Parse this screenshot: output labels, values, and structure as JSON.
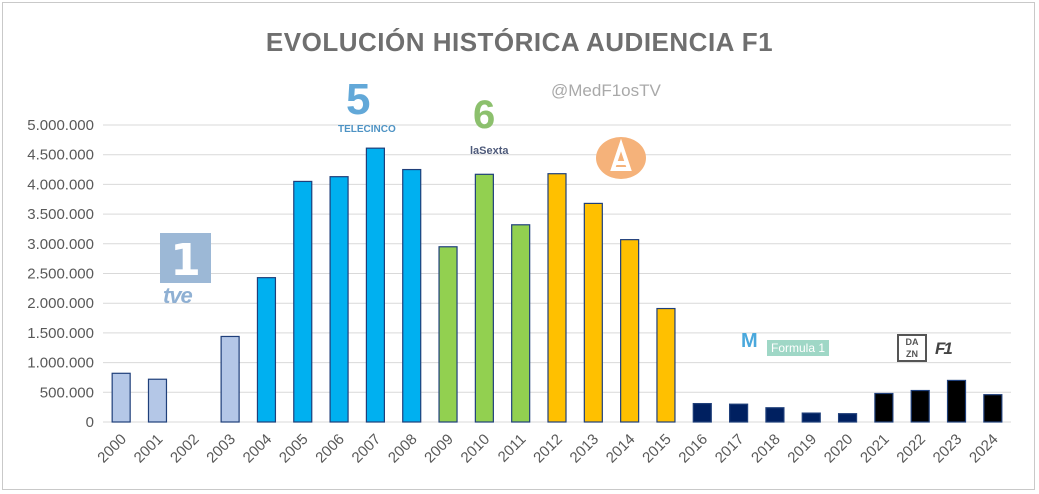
{
  "watermark": "@MedF1osTV",
  "logos": {
    "tve_number": "1",
    "tve_text": "tve",
    "telecinco_number": "5",
    "telecinco_text": "TELECINCO",
    "lasexta_number": "6",
    "lasexta_text": "laSexta",
    "movistar_mark": "M",
    "formula1_text": "Formula 1",
    "dazn_text": "DA ZN",
    "f1_text": "F1"
  },
  "chart_data": {
    "type": "bar",
    "title": "EVOLUCIÓN HISTÓRICA AUDIENCIA F1",
    "xlabel": "",
    "ylabel": "",
    "ylim": [
      0,
      5000000
    ],
    "ytick_values": [
      0,
      500000,
      1000000,
      1500000,
      2000000,
      2500000,
      3000000,
      3500000,
      4000000,
      4500000,
      5000000
    ],
    "ytick_labels": [
      "0",
      "500.000",
      "1.000.000",
      "1.500.000",
      "2.000.000",
      "2.500.000",
      "3.000.000",
      "3.500.000",
      "4.000.000",
      "4.500.000",
      "5.000.000"
    ],
    "grid": true,
    "categories": [
      "2000",
      "2001",
      "2002",
      "2003",
      "2004",
      "2005",
      "2006",
      "2007",
      "2008",
      "2009",
      "2010",
      "2011",
      "2012",
      "2013",
      "2014",
      "2015",
      "2016",
      "2017",
      "2018",
      "2019",
      "2020",
      "2021",
      "2022",
      "2023",
      "2024"
    ],
    "values": [
      820000,
      720000,
      0,
      1440000,
      2430000,
      4050000,
      4130000,
      4610000,
      4250000,
      2950000,
      4170000,
      3320000,
      4180000,
      3680000,
      3070000,
      1910000,
      310000,
      300000,
      240000,
      150000,
      140000,
      480000,
      530000,
      700000,
      460000
    ],
    "colors": [
      "#b4c7e7",
      "#b4c7e7",
      "#b4c7e7",
      "#b4c7e7",
      "#00b0f0",
      "#00b0f0",
      "#00b0f0",
      "#00b0f0",
      "#00b0f0",
      "#92d050",
      "#92d050",
      "#92d050",
      "#ffc000",
      "#ffc000",
      "#ffc000",
      "#ffc000",
      "#002060",
      "#002060",
      "#002060",
      "#002060",
      "#002060",
      "#000000",
      "#000000",
      "#000000",
      "#000000"
    ],
    "bar_edge_color": "#1f3f7a"
  }
}
